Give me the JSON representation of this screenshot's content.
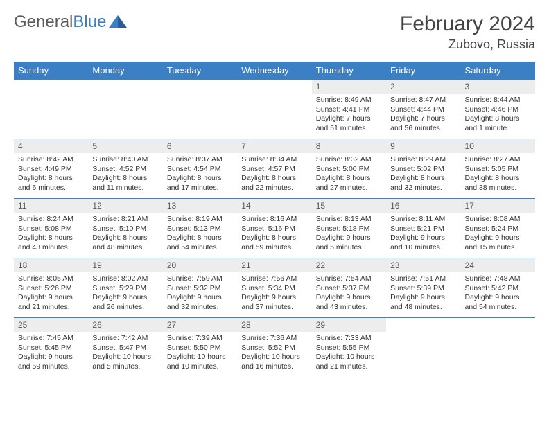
{
  "brand": {
    "part1": "General",
    "part2": "Blue"
  },
  "title": "February 2024",
  "location": "Zubovo, Russia",
  "header_color": "#3b7fc4",
  "daynum_bg": "#ededed",
  "border_color": "#3b7fc4",
  "weekdays": [
    "Sunday",
    "Monday",
    "Tuesday",
    "Wednesday",
    "Thursday",
    "Friday",
    "Saturday"
  ],
  "grid": [
    [
      null,
      null,
      null,
      null,
      {
        "n": "1",
        "sr": "Sunrise: 8:49 AM",
        "ss": "Sunset: 4:41 PM",
        "d1": "Daylight: 7 hours",
        "d2": "and 51 minutes."
      },
      {
        "n": "2",
        "sr": "Sunrise: 8:47 AM",
        "ss": "Sunset: 4:44 PM",
        "d1": "Daylight: 7 hours",
        "d2": "and 56 minutes."
      },
      {
        "n": "3",
        "sr": "Sunrise: 8:44 AM",
        "ss": "Sunset: 4:46 PM",
        "d1": "Daylight: 8 hours",
        "d2": "and 1 minute."
      }
    ],
    [
      {
        "n": "4",
        "sr": "Sunrise: 8:42 AM",
        "ss": "Sunset: 4:49 PM",
        "d1": "Daylight: 8 hours",
        "d2": "and 6 minutes."
      },
      {
        "n": "5",
        "sr": "Sunrise: 8:40 AM",
        "ss": "Sunset: 4:52 PM",
        "d1": "Daylight: 8 hours",
        "d2": "and 11 minutes."
      },
      {
        "n": "6",
        "sr": "Sunrise: 8:37 AM",
        "ss": "Sunset: 4:54 PM",
        "d1": "Daylight: 8 hours",
        "d2": "and 17 minutes."
      },
      {
        "n": "7",
        "sr": "Sunrise: 8:34 AM",
        "ss": "Sunset: 4:57 PM",
        "d1": "Daylight: 8 hours",
        "d2": "and 22 minutes."
      },
      {
        "n": "8",
        "sr": "Sunrise: 8:32 AM",
        "ss": "Sunset: 5:00 PM",
        "d1": "Daylight: 8 hours",
        "d2": "and 27 minutes."
      },
      {
        "n": "9",
        "sr": "Sunrise: 8:29 AM",
        "ss": "Sunset: 5:02 PM",
        "d1": "Daylight: 8 hours",
        "d2": "and 32 minutes."
      },
      {
        "n": "10",
        "sr": "Sunrise: 8:27 AM",
        "ss": "Sunset: 5:05 PM",
        "d1": "Daylight: 8 hours",
        "d2": "and 38 minutes."
      }
    ],
    [
      {
        "n": "11",
        "sr": "Sunrise: 8:24 AM",
        "ss": "Sunset: 5:08 PM",
        "d1": "Daylight: 8 hours",
        "d2": "and 43 minutes."
      },
      {
        "n": "12",
        "sr": "Sunrise: 8:21 AM",
        "ss": "Sunset: 5:10 PM",
        "d1": "Daylight: 8 hours",
        "d2": "and 48 minutes."
      },
      {
        "n": "13",
        "sr": "Sunrise: 8:19 AM",
        "ss": "Sunset: 5:13 PM",
        "d1": "Daylight: 8 hours",
        "d2": "and 54 minutes."
      },
      {
        "n": "14",
        "sr": "Sunrise: 8:16 AM",
        "ss": "Sunset: 5:16 PM",
        "d1": "Daylight: 8 hours",
        "d2": "and 59 minutes."
      },
      {
        "n": "15",
        "sr": "Sunrise: 8:13 AM",
        "ss": "Sunset: 5:18 PM",
        "d1": "Daylight: 9 hours",
        "d2": "and 5 minutes."
      },
      {
        "n": "16",
        "sr": "Sunrise: 8:11 AM",
        "ss": "Sunset: 5:21 PM",
        "d1": "Daylight: 9 hours",
        "d2": "and 10 minutes."
      },
      {
        "n": "17",
        "sr": "Sunrise: 8:08 AM",
        "ss": "Sunset: 5:24 PM",
        "d1": "Daylight: 9 hours",
        "d2": "and 15 minutes."
      }
    ],
    [
      {
        "n": "18",
        "sr": "Sunrise: 8:05 AM",
        "ss": "Sunset: 5:26 PM",
        "d1": "Daylight: 9 hours",
        "d2": "and 21 minutes."
      },
      {
        "n": "19",
        "sr": "Sunrise: 8:02 AM",
        "ss": "Sunset: 5:29 PM",
        "d1": "Daylight: 9 hours",
        "d2": "and 26 minutes."
      },
      {
        "n": "20",
        "sr": "Sunrise: 7:59 AM",
        "ss": "Sunset: 5:32 PM",
        "d1": "Daylight: 9 hours",
        "d2": "and 32 minutes."
      },
      {
        "n": "21",
        "sr": "Sunrise: 7:56 AM",
        "ss": "Sunset: 5:34 PM",
        "d1": "Daylight: 9 hours",
        "d2": "and 37 minutes."
      },
      {
        "n": "22",
        "sr": "Sunrise: 7:54 AM",
        "ss": "Sunset: 5:37 PM",
        "d1": "Daylight: 9 hours",
        "d2": "and 43 minutes."
      },
      {
        "n": "23",
        "sr": "Sunrise: 7:51 AM",
        "ss": "Sunset: 5:39 PM",
        "d1": "Daylight: 9 hours",
        "d2": "and 48 minutes."
      },
      {
        "n": "24",
        "sr": "Sunrise: 7:48 AM",
        "ss": "Sunset: 5:42 PM",
        "d1": "Daylight: 9 hours",
        "d2": "and 54 minutes."
      }
    ],
    [
      {
        "n": "25",
        "sr": "Sunrise: 7:45 AM",
        "ss": "Sunset: 5:45 PM",
        "d1": "Daylight: 9 hours",
        "d2": "and 59 minutes."
      },
      {
        "n": "26",
        "sr": "Sunrise: 7:42 AM",
        "ss": "Sunset: 5:47 PM",
        "d1": "Daylight: 10 hours",
        "d2": "and 5 minutes."
      },
      {
        "n": "27",
        "sr": "Sunrise: 7:39 AM",
        "ss": "Sunset: 5:50 PM",
        "d1": "Daylight: 10 hours",
        "d2": "and 10 minutes."
      },
      {
        "n": "28",
        "sr": "Sunrise: 7:36 AM",
        "ss": "Sunset: 5:52 PM",
        "d1": "Daylight: 10 hours",
        "d2": "and 16 minutes."
      },
      {
        "n": "29",
        "sr": "Sunrise: 7:33 AM",
        "ss": "Sunset: 5:55 PM",
        "d1": "Daylight: 10 hours",
        "d2": "and 21 minutes."
      },
      null,
      null
    ]
  ]
}
